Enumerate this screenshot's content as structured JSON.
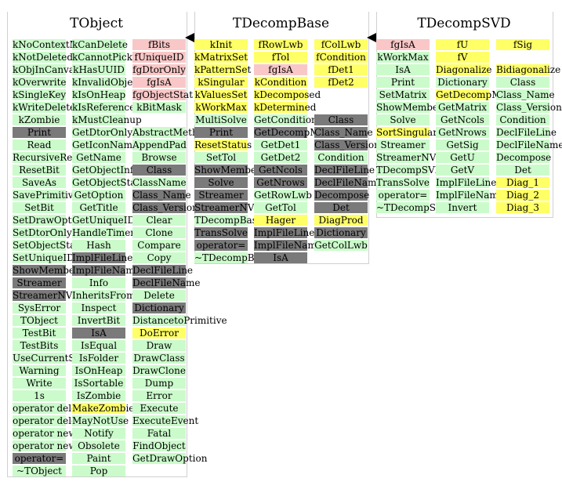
{
  "classes": [
    {
      "title": "TObject",
      "columns": [
        [
          {
            "t": "kNoContextMenu",
            "c": "g"
          },
          {
            "t": "kNotDeleted",
            "c": "g"
          },
          {
            "t": "kObjInCanvas",
            "c": "g"
          },
          {
            "t": "kOverwrite",
            "c": "g"
          },
          {
            "t": "kSingleKey",
            "c": "g"
          },
          {
            "t": "kWriteDelete",
            "c": "g"
          },
          {
            "t": "kZombie",
            "c": "g"
          },
          {
            "t": "Print",
            "c": "d"
          },
          {
            "t": "Read",
            "c": "g"
          },
          {
            "t": "RecursiveRemove",
            "c": "g"
          },
          {
            "t": "ResetBit",
            "c": "g"
          },
          {
            "t": "SaveAs",
            "c": "g"
          },
          {
            "t": "SavePrimitive",
            "c": "g"
          },
          {
            "t": "SetBit",
            "c": "g"
          },
          {
            "t": "SetDrawOption",
            "c": "g"
          },
          {
            "t": "SetDtorOnly",
            "c": "g"
          },
          {
            "t": "SetObjectStat",
            "c": "g"
          },
          {
            "t": "SetUniqueID",
            "c": "g"
          },
          {
            "t": "ShowMembers",
            "c": "d"
          },
          {
            "t": "Streamer",
            "c": "d"
          },
          {
            "t": "StreamerNVirtual",
            "c": "d"
          },
          {
            "t": "SysError",
            "c": "g"
          },
          {
            "t": "TObject",
            "c": "g"
          },
          {
            "t": "TestBit",
            "c": "g"
          },
          {
            "t": "TestBits",
            "c": "g"
          },
          {
            "t": "UseCurrentStyle",
            "c": "g"
          },
          {
            "t": "Warning",
            "c": "g"
          },
          {
            "t": "Write",
            "c": "g"
          },
          {
            "t": "1s",
            "c": "g"
          },
          {
            "t": "operator delete",
            "c": "g"
          },
          {
            "t": "operator delete[]",
            "c": "g"
          },
          {
            "t": "operator new",
            "c": "g"
          },
          {
            "t": "operator new[]",
            "c": "g"
          },
          {
            "t": "operator=",
            "c": "d"
          },
          {
            "t": "~TObject",
            "c": "g"
          }
        ],
        [
          {
            "t": "kCanDelete",
            "c": "g"
          },
          {
            "t": "kCannotPick",
            "c": "g"
          },
          {
            "t": "kHasUUID",
            "c": "g"
          },
          {
            "t": "kInvalidObject",
            "c": "g"
          },
          {
            "t": "kIsOnHeap",
            "c": "g"
          },
          {
            "t": "kIsReferenced",
            "c": "g"
          },
          {
            "t": "kMustCleanup",
            "c": "g"
          },
          {
            "t": "GetDtorOnly",
            "c": "g"
          },
          {
            "t": "GetIconName",
            "c": "g"
          },
          {
            "t": "GetName",
            "c": "g"
          },
          {
            "t": "GetObjectInfo",
            "c": "g"
          },
          {
            "t": "GetObjectStat",
            "c": "g"
          },
          {
            "t": "GetOption",
            "c": "g"
          },
          {
            "t": "GetTitle",
            "c": "g"
          },
          {
            "t": "GetUniqueID",
            "c": "g"
          },
          {
            "t": "HandleTimer",
            "c": "g"
          },
          {
            "t": "Hash",
            "c": "g"
          },
          {
            "t": "ImplFileLine",
            "c": "d"
          },
          {
            "t": "ImplFileName",
            "c": "d"
          },
          {
            "t": "Info",
            "c": "g"
          },
          {
            "t": "InheritsFrom",
            "c": "g"
          },
          {
            "t": "Inspect",
            "c": "g"
          },
          {
            "t": "InvertBit",
            "c": "g"
          },
          {
            "t": "IsA",
            "c": "d"
          },
          {
            "t": "IsEqual",
            "c": "g"
          },
          {
            "t": "IsFolder",
            "c": "g"
          },
          {
            "t": "IsOnHeap",
            "c": "g"
          },
          {
            "t": "IsSortable",
            "c": "g"
          },
          {
            "t": "IsZombie",
            "c": "g"
          },
          {
            "t": "MakeZombie",
            "c": "y"
          },
          {
            "t": "MayNotUse",
            "c": "g"
          },
          {
            "t": "Notify",
            "c": "g"
          },
          {
            "t": "Obsolete",
            "c": "g"
          },
          {
            "t": "Paint",
            "c": "g"
          },
          {
            "t": "Pop",
            "c": "g"
          }
        ],
        [
          {
            "t": "fBits",
            "c": "p"
          },
          {
            "t": "fUniqueID",
            "c": "p"
          },
          {
            "t": "fgDtorOnly",
            "c": "p"
          },
          {
            "t": "fgIsA",
            "c": "p"
          },
          {
            "t": "fgObjectStat",
            "c": "p"
          },
          {
            "t": "kBitMask",
            "c": "g"
          },
          {
            "t": "",
            "c": "none"
          },
          {
            "t": "AbstractMethod",
            "c": "g"
          },
          {
            "t": "AppendPad",
            "c": "g"
          },
          {
            "t": "Browse",
            "c": "g"
          },
          {
            "t": "Class",
            "c": "d"
          },
          {
            "t": "ClassName",
            "c": "g"
          },
          {
            "t": "Class_Name",
            "c": "d"
          },
          {
            "t": "Class_Version",
            "c": "d"
          },
          {
            "t": "Clear",
            "c": "g"
          },
          {
            "t": "Clone",
            "c": "g"
          },
          {
            "t": "Compare",
            "c": "g"
          },
          {
            "t": "Copy",
            "c": "g"
          },
          {
            "t": "DeclFileLine",
            "c": "d"
          },
          {
            "t": "DeclFileName",
            "c": "d"
          },
          {
            "t": "Delete",
            "c": "g"
          },
          {
            "t": "Dictionary",
            "c": "d"
          },
          {
            "t": "DistancetoPrimitive",
            "c": "g"
          },
          {
            "t": "DoError",
            "c": "y"
          },
          {
            "t": "Draw",
            "c": "g"
          },
          {
            "t": "DrawClass",
            "c": "g"
          },
          {
            "t": "DrawClone",
            "c": "g"
          },
          {
            "t": "Dump",
            "c": "g"
          },
          {
            "t": "Error",
            "c": "g"
          },
          {
            "t": "Execute",
            "c": "g"
          },
          {
            "t": "ExecuteEvent",
            "c": "g"
          },
          {
            "t": "Fatal",
            "c": "g"
          },
          {
            "t": "FindObject",
            "c": "g"
          },
          {
            "t": "GetDrawOption",
            "c": "g"
          }
        ]
      ]
    },
    {
      "title": "TDecompBase",
      "columns": [
        [
          {
            "t": "kInit",
            "c": "y"
          },
          {
            "t": "kMatrixSet",
            "c": "y"
          },
          {
            "t": "kPatternSet",
            "c": "y"
          },
          {
            "t": "kSingular",
            "c": "y"
          },
          {
            "t": "kValuesSet",
            "c": "y"
          },
          {
            "t": "kWorkMax",
            "c": "y"
          },
          {
            "t": "MultiSolve",
            "c": "g"
          },
          {
            "t": "Print",
            "c": "d"
          },
          {
            "t": "ResetStatus",
            "c": "y"
          },
          {
            "t": "SetTol",
            "c": "g"
          },
          {
            "t": "ShowMembers",
            "c": "d"
          },
          {
            "t": "Solve",
            "c": "d"
          },
          {
            "t": "Streamer",
            "c": "d"
          },
          {
            "t": "StreamerNVirtual",
            "c": "d"
          },
          {
            "t": "TDecompBase",
            "c": "g"
          },
          {
            "t": "TransSolve",
            "c": "d"
          },
          {
            "t": "operator=",
            "c": "d"
          },
          {
            "t": "~TDecompBase",
            "c": "g"
          }
        ],
        [
          {
            "t": "fRowLwb",
            "c": "y"
          },
          {
            "t": "fTol",
            "c": "y"
          },
          {
            "t": "fgIsA",
            "c": "p"
          },
          {
            "t": "kCondition",
            "c": "y"
          },
          {
            "t": "kDecomposed",
            "c": "y"
          },
          {
            "t": "kDetermined",
            "c": "y"
          },
          {
            "t": "GetCondition",
            "c": "g"
          },
          {
            "t": "GetDecompMatrix",
            "c": "d"
          },
          {
            "t": "GetDet1",
            "c": "g"
          },
          {
            "t": "GetDet2",
            "c": "g"
          },
          {
            "t": "GetNcols",
            "c": "d"
          },
          {
            "t": "GetNrows",
            "c": "d"
          },
          {
            "t": "GetRowLwb",
            "c": "g"
          },
          {
            "t": "GetTol",
            "c": "g"
          },
          {
            "t": "Hager",
            "c": "y"
          },
          {
            "t": "ImplFileLine",
            "c": "d"
          },
          {
            "t": "ImplFileName",
            "c": "d"
          },
          {
            "t": "IsA",
            "c": "d"
          }
        ],
        [
          {
            "t": "fColLwb",
            "c": "y"
          },
          {
            "t": "fCondition",
            "c": "y"
          },
          {
            "t": "fDet1",
            "c": "y"
          },
          {
            "t": "fDet2",
            "c": "y"
          },
          {
            "t": "",
            "c": "none"
          },
          {
            "t": "",
            "c": "none"
          },
          {
            "t": "Class",
            "c": "d"
          },
          {
            "t": "Class_Name",
            "c": "d"
          },
          {
            "t": "Class_Version",
            "c": "d"
          },
          {
            "t": "Condition",
            "c": "g"
          },
          {
            "t": "DeclFileLine",
            "c": "d"
          },
          {
            "t": "DeclFileName",
            "c": "d"
          },
          {
            "t": "Decompose",
            "c": "d"
          },
          {
            "t": "Det",
            "c": "d"
          },
          {
            "t": "DiagProd",
            "c": "y"
          },
          {
            "t": "Dictionary",
            "c": "d"
          },
          {
            "t": "GetColLwb",
            "c": "g"
          }
        ]
      ]
    },
    {
      "title": "TDecompSVD",
      "columns": [
        [
          {
            "t": "fgIsA",
            "c": "p"
          },
          {
            "t": "kWorkMax",
            "c": "g"
          },
          {
            "t": "IsA",
            "c": "g"
          },
          {
            "t": "Print",
            "c": "g"
          },
          {
            "t": "SetMatrix",
            "c": "g"
          },
          {
            "t": "ShowMembers",
            "c": "g"
          },
          {
            "t": "Solve",
            "c": "g"
          },
          {
            "t": "SortSingular",
            "c": "y"
          },
          {
            "t": "Streamer",
            "c": "g"
          },
          {
            "t": "StreamerNVirtual",
            "c": "g"
          },
          {
            "t": "TDecompSVD",
            "c": "g"
          },
          {
            "t": "TransSolve",
            "c": "g"
          },
          {
            "t": "operator=",
            "c": "g"
          },
          {
            "t": "~TDecompSVD",
            "c": "g"
          }
        ],
        [
          {
            "t": "fU",
            "c": "y"
          },
          {
            "t": "fV",
            "c": "y"
          },
          {
            "t": "Diagonalize",
            "c": "y"
          },
          {
            "t": "Dictionary",
            "c": "g"
          },
          {
            "t": "GetDecompMatrix",
            "c": "y"
          },
          {
            "t": "GetMatrix",
            "c": "g"
          },
          {
            "t": "GetNcols",
            "c": "g"
          },
          {
            "t": "GetNrows",
            "c": "g"
          },
          {
            "t": "GetSig",
            "c": "g"
          },
          {
            "t": "GetU",
            "c": "g"
          },
          {
            "t": "GetV",
            "c": "g"
          },
          {
            "t": "ImplFileLine",
            "c": "g"
          },
          {
            "t": "ImplFileName",
            "c": "g"
          },
          {
            "t": "Invert",
            "c": "g"
          }
        ],
        [
          {
            "t": "fSig",
            "c": "y"
          },
          {
            "t": "",
            "c": "none"
          },
          {
            "t": "Bidiagonalize",
            "c": "y"
          },
          {
            "t": "Class",
            "c": "g"
          },
          {
            "t": "Class_Name",
            "c": "g"
          },
          {
            "t": "Class_Version",
            "c": "g"
          },
          {
            "t": "Condition",
            "c": "g"
          },
          {
            "t": "DeclFileLine",
            "c": "g"
          },
          {
            "t": "DeclFileName",
            "c": "g"
          },
          {
            "t": "Decompose",
            "c": "g"
          },
          {
            "t": "Det",
            "c": "g"
          },
          {
            "t": "Diag_1",
            "c": "y"
          },
          {
            "t": "Diag_2",
            "c": "y"
          },
          {
            "t": "Diag_3",
            "c": "y"
          }
        ]
      ]
    }
  ]
}
